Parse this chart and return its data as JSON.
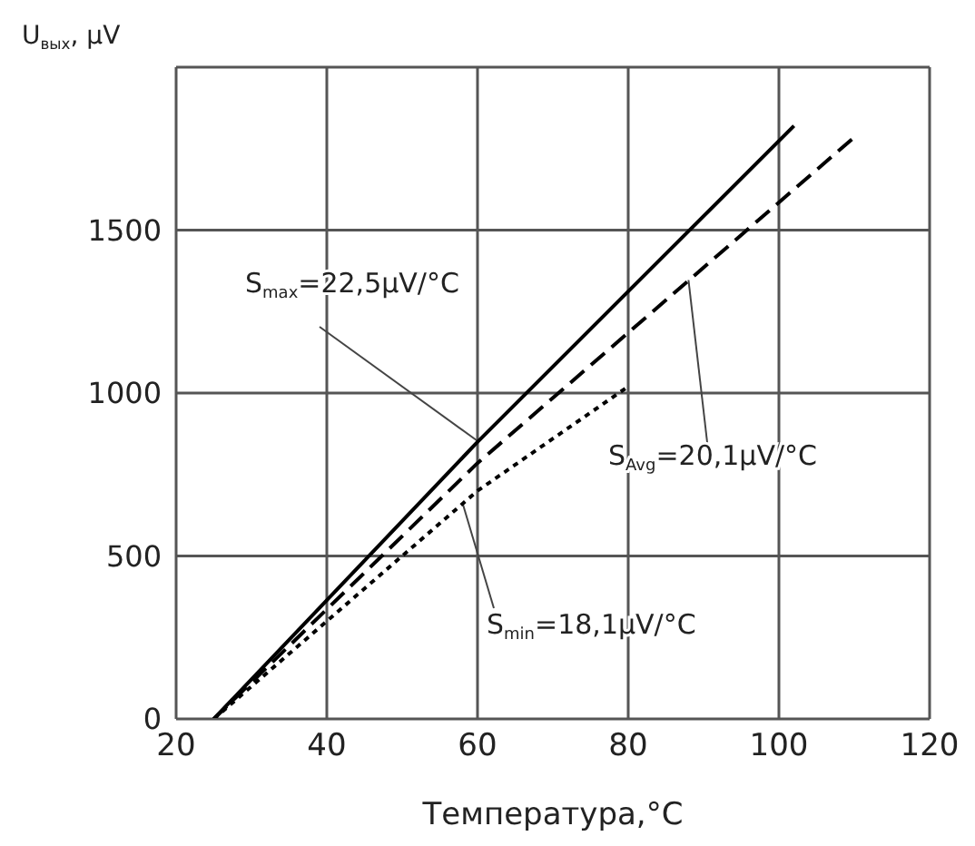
{
  "chart_data": {
    "type": "line",
    "xlabel": "Температура,°C",
    "ylabel": "U$_{вых}$, μV",
    "xlim": [
      20,
      120
    ],
    "xticks": [
      20,
      40,
      60,
      80,
      100,
      120
    ],
    "ylim": [
      0,
      2000
    ],
    "yticks": [
      0,
      500,
      1000,
      1500,
      {
        "value": 2000,
        "label": null
      }
    ],
    "grid": true,
    "marker": "none",
    "series": [
      {
        "x": [
          25,
          60,
          102
        ],
        "values": [
          0,
          850,
          1820
        ],
        "color": "#000000",
        "line_style": "solid"
      },
      {
        "x": [
          25,
          60,
          110
        ],
        "values": [
          0,
          785,
          1785
        ],
        "color": "#000000",
        "line_style": "dashed"
      },
      {
        "x": [
          25,
          60,
          80
        ],
        "values": [
          0,
          700,
          1020
        ],
        "color": "#000000",
        "line_style": "dotted"
      }
    ],
    "annotations": [
      {
        "text": "S$_{max}$=22,5μV/°C",
        "x": 60,
        "y": 850
      },
      {
        "text": "S$_{Avg}$=20,1μV/°C",
        "x": 88,
        "y": 1345
      },
      {
        "text": "S$_{min}$=18,1μV/°C",
        "x": 58,
        "y": 660
      }
    ]
  }
}
